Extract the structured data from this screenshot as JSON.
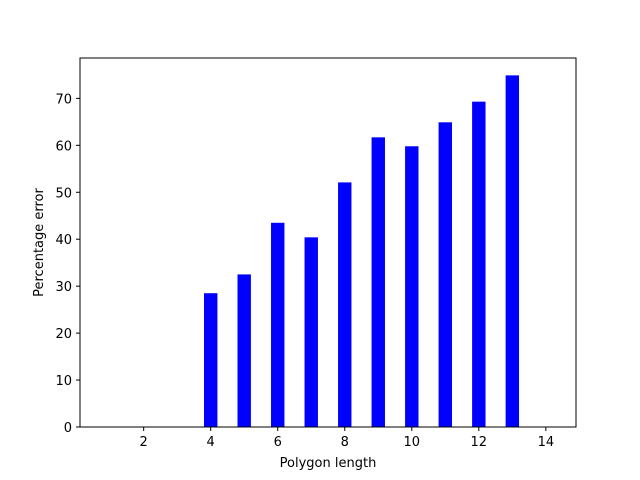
{
  "chart_data": {
    "type": "bar",
    "x": [
      4,
      5,
      6,
      7,
      8,
      9,
      10,
      11,
      12,
      13
    ],
    "values": [
      28.5,
      32.5,
      43.5,
      40.4,
      52.1,
      61.7,
      59.8,
      64.9,
      69.3,
      74.9
    ],
    "title": "",
    "xlabel": "Polygon length",
    "ylabel": "Percentage error",
    "xlim": [
      0.1,
      14.9
    ],
    "ylim": [
      0,
      78.6
    ],
    "xticks": [
      2,
      4,
      6,
      8,
      10,
      12,
      14
    ],
    "yticks": [
      0,
      10,
      20,
      30,
      40,
      50,
      60,
      70
    ],
    "bar_color": "#0000ff",
    "grid": false,
    "legend": "none"
  }
}
